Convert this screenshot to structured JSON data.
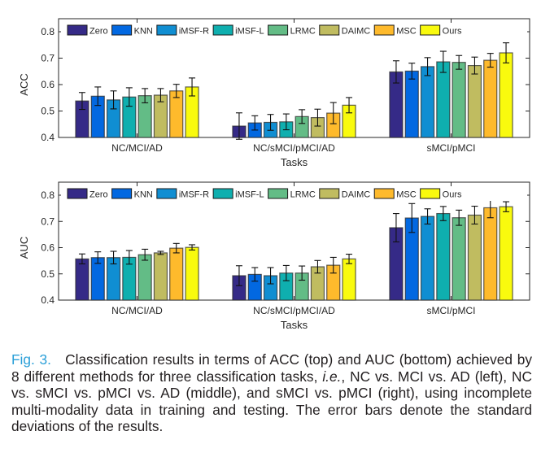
{
  "chart_data": [
    {
      "type": "bar",
      "title": "",
      "xlabel": "Tasks",
      "ylabel": "ACC",
      "ylim": [
        0.4,
        0.85
      ],
      "yticks": [
        "0.4",
        "0.5",
        "0.6",
        "0.7",
        "0.8"
      ],
      "categories": [
        "NC/MCI/AD",
        "NC/sMCI/pMCI/AD",
        "sMCI/pMCI"
      ],
      "legend_position": "top",
      "series": [
        {
          "name": "Zero",
          "color": "#352a87",
          "values": [
            0.538,
            0.443,
            0.648
          ],
          "errors": [
            0.032,
            0.05,
            0.042
          ]
        },
        {
          "name": "KNN",
          "color": "#0268e1",
          "values": [
            0.556,
            0.455,
            0.651
          ],
          "errors": [
            0.035,
            0.027,
            0.03
          ]
        },
        {
          "name": "iMSF-R",
          "color": "#108ed2",
          "values": [
            0.542,
            0.457,
            0.668
          ],
          "errors": [
            0.034,
            0.03,
            0.034
          ]
        },
        {
          "name": "iMSF-L",
          "color": "#0fafaf",
          "values": [
            0.553,
            0.459,
            0.686
          ],
          "errors": [
            0.035,
            0.03,
            0.04
          ]
        },
        {
          "name": "LRMC",
          "color": "#63bc86",
          "values": [
            0.558,
            0.479,
            0.684
          ],
          "errors": [
            0.027,
            0.026,
            0.026
          ]
        },
        {
          "name": "DAIMC",
          "color": "#c0bc60",
          "values": [
            0.56,
            0.475,
            0.672
          ],
          "errors": [
            0.025,
            0.032,
            0.032
          ]
        },
        {
          "name": "MSC",
          "color": "#feba2c",
          "values": [
            0.576,
            0.492,
            0.692
          ],
          "errors": [
            0.025,
            0.04,
            0.026
          ]
        },
        {
          "name": "Ours",
          "color": "#f9fa0e",
          "values": [
            0.591,
            0.522,
            0.72
          ],
          "errors": [
            0.034,
            0.029,
            0.038
          ]
        }
      ]
    },
    {
      "type": "bar",
      "title": "",
      "xlabel": "Tasks",
      "ylabel": "AUC",
      "ylim": [
        0.4,
        0.85
      ],
      "yticks": [
        "0.4",
        "0.5",
        "0.6",
        "0.7",
        "0.8"
      ],
      "categories": [
        "NC/MCI/AD",
        "NC/sMCI/pMCI/AD",
        "sMCI/pMCI"
      ],
      "legend_position": "top",
      "series": [
        {
          "name": "Zero",
          "color": "#352a87",
          "values": [
            0.557,
            0.493,
            0.676
          ],
          "errors": [
            0.019,
            0.038,
            0.054
          ]
        },
        {
          "name": "KNN",
          "color": "#0268e1",
          "values": [
            0.562,
            0.498,
            0.713
          ],
          "errors": [
            0.022,
            0.026,
            0.055
          ]
        },
        {
          "name": "iMSF-R",
          "color": "#108ed2",
          "values": [
            0.562,
            0.493,
            0.719
          ],
          "errors": [
            0.024,
            0.031,
            0.029
          ]
        },
        {
          "name": "iMSF-L",
          "color": "#0fafaf",
          "values": [
            0.563,
            0.503,
            0.73
          ],
          "errors": [
            0.026,
            0.029,
            0.027
          ]
        },
        {
          "name": "LRMC",
          "color": "#63bc86",
          "values": [
            0.573,
            0.503,
            0.714
          ],
          "errors": [
            0.021,
            0.027,
            0.029
          ]
        },
        {
          "name": "DAIMC",
          "color": "#c0bc60",
          "values": [
            0.58,
            0.527,
            0.724
          ],
          "errors": [
            0.006,
            0.024,
            0.034
          ]
        },
        {
          "name": "MSC",
          "color": "#feba2c",
          "values": [
            0.598,
            0.533,
            0.752
          ],
          "errors": [
            0.018,
            0.03,
            0.038
          ]
        },
        {
          "name": "Ours",
          "color": "#f9fa0e",
          "values": [
            0.601,
            0.557,
            0.756
          ],
          "errors": [
            0.01,
            0.018,
            0.019
          ]
        }
      ]
    }
  ],
  "caption": {
    "fig_label": "Fig. 3.",
    "text_1": "Classification results in terms of ACC (top) and AUC (bottom) achieved by 8 different methods for three classification tasks, ",
    "ie": "i.e.",
    "text_2": ", NC vs. MCI vs. AD (left), NC vs. sMCI vs. pMCI vs. AD (middle), and sMCI vs. pMCI (right), using incomplete multi-modality data in training and testing. The error bars denote the standard deviations of the results."
  }
}
